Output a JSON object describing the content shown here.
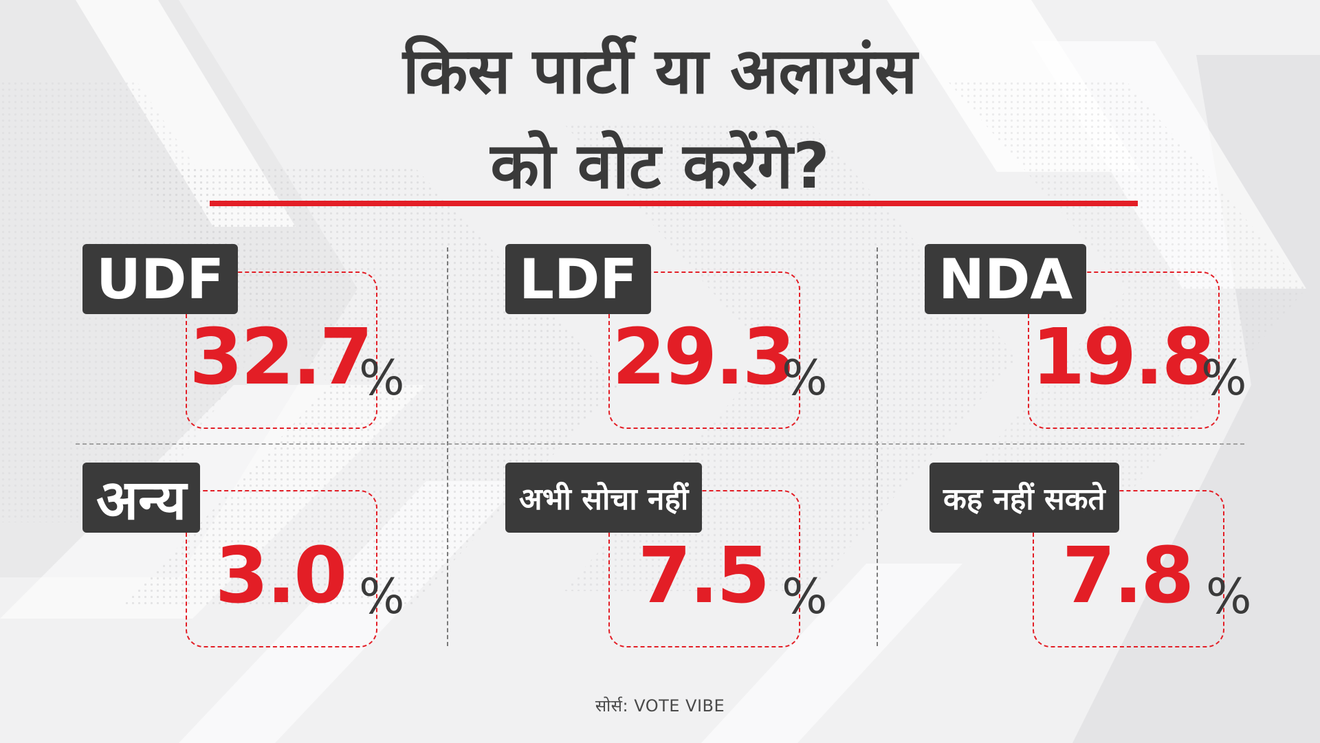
{
  "title": {
    "line1": "किस पार्टी या अलायंस",
    "line2": "को वोट करेंगे?"
  },
  "cards": [
    {
      "label": "UDF",
      "value": "32.7",
      "unit": "%"
    },
    {
      "label": "LDF",
      "value": "29.3",
      "unit": "%"
    },
    {
      "label": "NDA",
      "value": "19.8",
      "unit": "%"
    },
    {
      "label": "अन्य",
      "value": "3.0",
      "unit": "%"
    },
    {
      "label": "अभी सोचा नहीं",
      "value": "7.5",
      "unit": "%"
    },
    {
      "label": "कह नहीं सकते",
      "value": "7.8",
      "unit": "%"
    }
  ],
  "source": "सोर्स: VOTE VIBE",
  "colors": {
    "accent": "#e31e26",
    "dark": "#3a3a3a",
    "background": "#f1f1f2"
  }
}
